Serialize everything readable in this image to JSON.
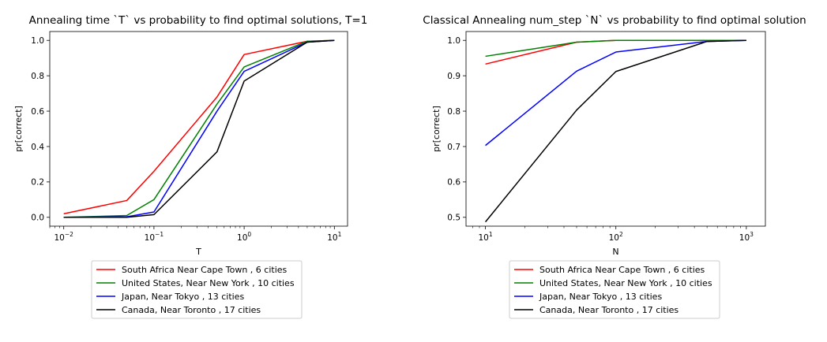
{
  "chart_data": [
    {
      "type": "line",
      "title": "Annealing time `T` vs probability to find optimal solutions, T=1",
      "xlabel": "T",
      "ylabel": "pr[correct]",
      "xscale": "log",
      "xlim": [
        0.007,
        14
      ],
      "ylim": [
        -0.05,
        1.05
      ],
      "xticks": [
        0.01,
        0.1,
        1,
        10
      ],
      "xtick_labels": [
        {
          "base": "10",
          "exp": "−2"
        },
        {
          "base": "10",
          "exp": "−1"
        },
        {
          "base": "10",
          "exp": "0"
        },
        {
          "base": "10",
          "exp": "1"
        }
      ],
      "yticks": [
        0.0,
        0.2,
        0.4,
        0.6,
        0.8,
        1.0
      ],
      "ytick_labels": [
        "0.0",
        "0.2",
        "0.4",
        "0.6",
        "0.8",
        "1.0"
      ],
      "grid": false,
      "legend_position": "below",
      "x": [
        0.01,
        0.05,
        0.1,
        0.5,
        1,
        5,
        10
      ],
      "series": [
        {
          "name": "South Africa Near Cape Town , 6 cities",
          "color": "#ff0000",
          "values": [
            0.02,
            0.095,
            0.26,
            0.68,
            0.92,
            0.995,
            1.0
          ]
        },
        {
          "name": "United States, Near New York , 10 cities",
          "color": "#008000",
          "values": [
            0.0,
            0.01,
            0.1,
            0.64,
            0.85,
            0.995,
            1.0
          ]
        },
        {
          "name": "Japan, Near Tokyo , 13 cities",
          "color": "#0000ff",
          "values": [
            0.0,
            0.003,
            0.03,
            0.6,
            0.825,
            0.99,
            1.0
          ]
        },
        {
          "name": "Canada, Near Toronto , 17 cities",
          "color": "#000000",
          "values": [
            0.0,
            0.0,
            0.015,
            0.37,
            0.77,
            0.99,
            1.0
          ]
        }
      ]
    },
    {
      "type": "line",
      "title": "Classical Annealing num_step `N` vs probability to find optimal solution",
      "xlabel": "N",
      "ylabel": "pr[correct]",
      "xscale": "log",
      "xlim": [
        7.1,
        1400
      ],
      "ylim": [
        0.475,
        1.025
      ],
      "xticks": [
        10,
        100,
        1000
      ],
      "xtick_labels": [
        {
          "base": "10",
          "exp": "1"
        },
        {
          "base": "10",
          "exp": "2"
        },
        {
          "base": "10",
          "exp": "3"
        }
      ],
      "yticks": [
        0.5,
        0.6,
        0.7,
        0.8,
        0.9,
        1.0
      ],
      "ytick_labels": [
        "0.5",
        "0.6",
        "0.7",
        "0.8",
        "0.9",
        "1.0"
      ],
      "grid": false,
      "legend_position": "below",
      "x": [
        10,
        50,
        100,
        500,
        1000
      ],
      "series": [
        {
          "name": "South Africa Near Cape Town , 6 cities",
          "color": "#ff0000",
          "values": [
            0.933,
            0.995,
            1.0,
            1.0,
            1.0
          ]
        },
        {
          "name": "United States, Near New York , 10 cities",
          "color": "#008000",
          "values": [
            0.955,
            0.995,
            1.0,
            1.0,
            1.0
          ]
        },
        {
          "name": "Japan, Near Tokyo , 13 cities",
          "color": "#0000ff",
          "values": [
            0.703,
            0.913,
            0.967,
            0.997,
            1.0
          ]
        },
        {
          "name": "Canada, Near Toronto , 17 cities",
          "color": "#000000",
          "values": [
            0.487,
            0.803,
            0.912,
            0.997,
            1.0
          ]
        }
      ]
    }
  ]
}
